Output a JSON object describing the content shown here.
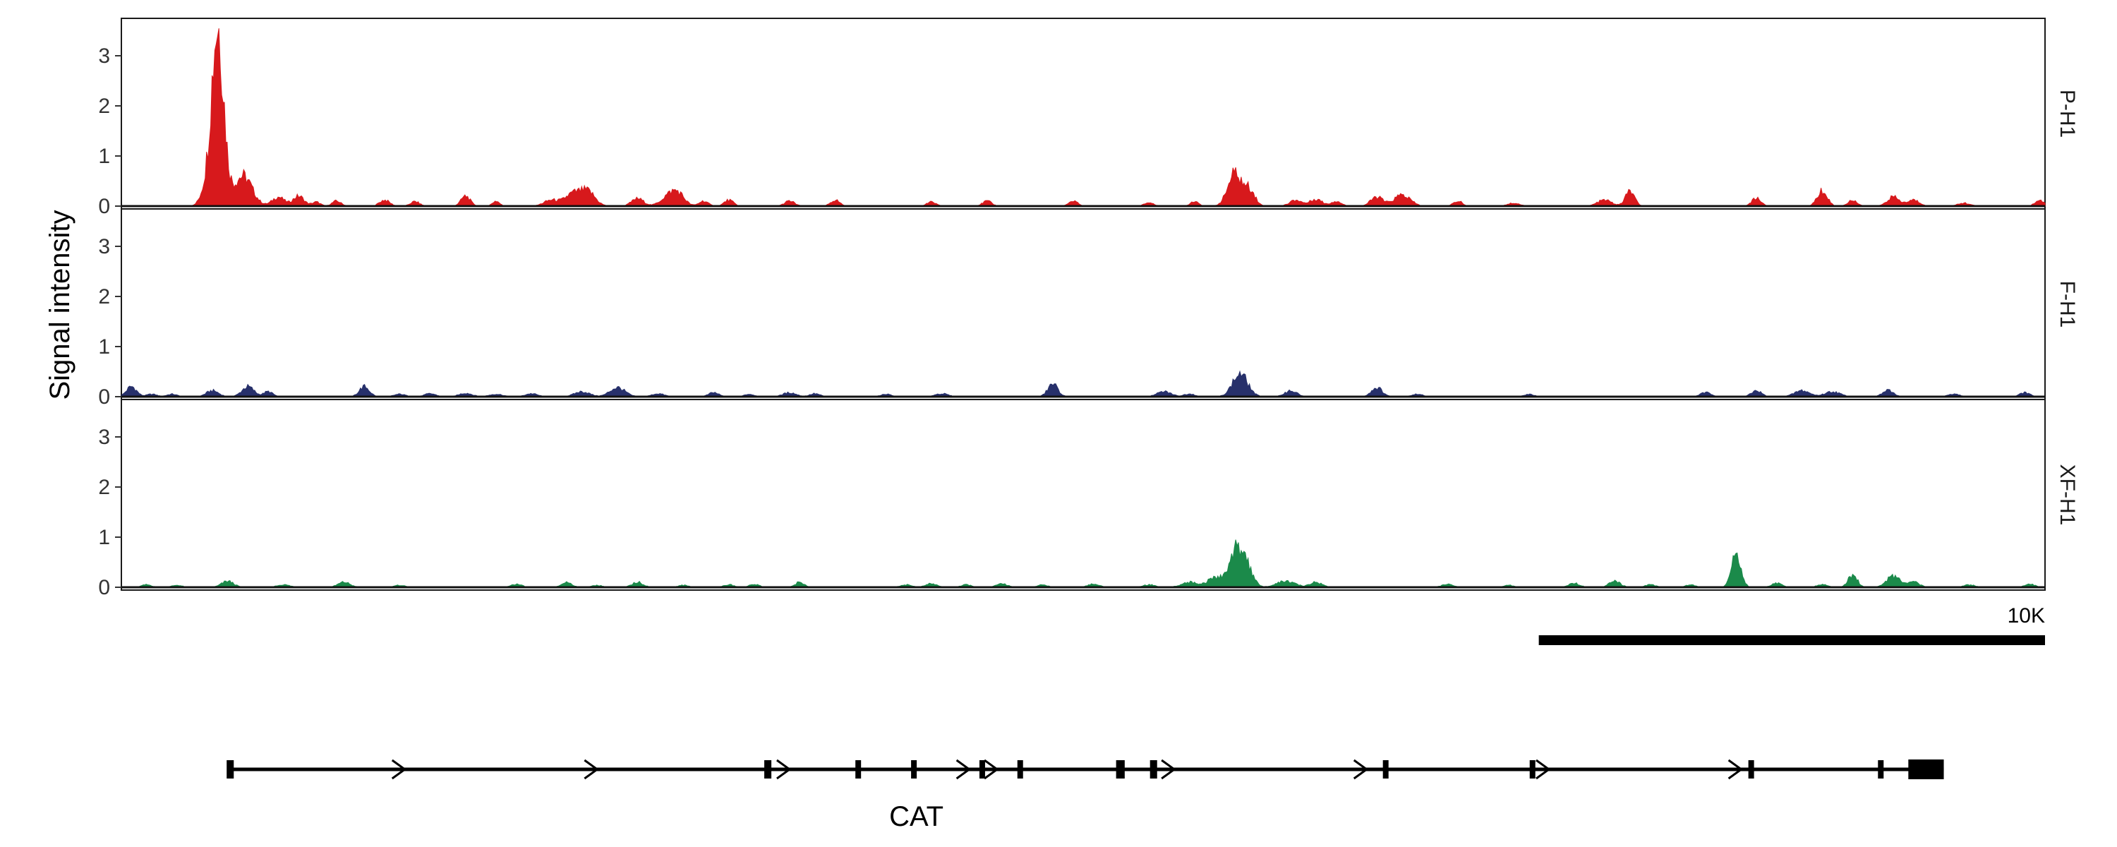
{
  "chart_data": {
    "type": "area",
    "ylabel": "Signal intensity",
    "xlim": [
      0,
      38000
    ],
    "ylim": [
      0,
      3.8
    ],
    "yticks": [
      "0",
      "1",
      "2",
      "3"
    ],
    "grid": false,
    "tracks": [
      {
        "name": "P-H1",
        "color": "#d7191c",
        "peaks": [
          [
            1900,
            3.6,
            120
          ],
          [
            2400,
            0.6,
            180
          ],
          [
            1650,
            0.25,
            100
          ],
          [
            3100,
            0.18,
            120
          ],
          [
            3500,
            0.2,
            110
          ],
          [
            3850,
            0.08,
            80
          ],
          [
            4250,
            0.1,
            90
          ],
          [
            5200,
            0.12,
            100
          ],
          [
            5800,
            0.09,
            90
          ],
          [
            6800,
            0.2,
            90
          ],
          [
            7400,
            0.1,
            70
          ],
          [
            8500,
            0.12,
            150
          ],
          [
            8900,
            0.22,
            140
          ],
          [
            9200,
            0.3,
            150
          ],
          [
            10200,
            0.15,
            120
          ],
          [
            10800,
            0.18,
            150
          ],
          [
            11000,
            0.22,
            130
          ],
          [
            11500,
            0.1,
            90
          ],
          [
            12000,
            0.12,
            90
          ],
          [
            13200,
            0.1,
            100
          ],
          [
            14100,
            0.12,
            90
          ],
          [
            16000,
            0.08,
            90
          ],
          [
            17100,
            0.1,
            90
          ],
          [
            18800,
            0.1,
            90
          ],
          [
            20300,
            0.07,
            90
          ],
          [
            21200,
            0.1,
            80
          ],
          [
            22000,
            0.65,
            140
          ],
          [
            22300,
            0.3,
            100
          ],
          [
            23200,
            0.12,
            120
          ],
          [
            23600,
            0.14,
            120
          ],
          [
            24000,
            0.1,
            100
          ],
          [
            24800,
            0.18,
            120
          ],
          [
            25300,
            0.22,
            160
          ],
          [
            26400,
            0.1,
            90
          ],
          [
            27500,
            0.06,
            120
          ],
          [
            29300,
            0.12,
            140
          ],
          [
            29800,
            0.3,
            90
          ],
          [
            32300,
            0.16,
            90
          ],
          [
            33600,
            0.3,
            100
          ],
          [
            34200,
            0.12,
            90
          ],
          [
            35000,
            0.18,
            120
          ],
          [
            35400,
            0.12,
            120
          ],
          [
            36400,
            0.06,
            120
          ],
          [
            37900,
            0.1,
            100
          ]
        ]
      },
      {
        "name": "F-H1",
        "color": "#27306b",
        "peaks": [
          [
            200,
            0.2,
            100
          ],
          [
            600,
            0.05,
            100
          ],
          [
            1000,
            0.05,
            100
          ],
          [
            1800,
            0.12,
            120
          ],
          [
            2500,
            0.2,
            120
          ],
          [
            2900,
            0.1,
            90
          ],
          [
            4800,
            0.2,
            100
          ],
          [
            5500,
            0.05,
            110
          ],
          [
            6100,
            0.06,
            110
          ],
          [
            6800,
            0.07,
            130
          ],
          [
            7400,
            0.05,
            130
          ],
          [
            8100,
            0.06,
            120
          ],
          [
            9100,
            0.1,
            150
          ],
          [
            9800,
            0.18,
            150
          ],
          [
            10600,
            0.06,
            120
          ],
          [
            11700,
            0.08,
            100
          ],
          [
            12400,
            0.05,
            100
          ],
          [
            13200,
            0.08,
            130
          ],
          [
            13700,
            0.06,
            100
          ],
          [
            15100,
            0.05,
            100
          ],
          [
            16200,
            0.06,
            130
          ],
          [
            18400,
            0.25,
            100
          ],
          [
            20600,
            0.1,
            140
          ],
          [
            21100,
            0.06,
            100
          ],
          [
            22100,
            0.45,
            150
          ],
          [
            23100,
            0.12,
            120
          ],
          [
            24800,
            0.18,
            110
          ],
          [
            25600,
            0.05,
            110
          ],
          [
            27800,
            0.05,
            100
          ],
          [
            31300,
            0.08,
            110
          ],
          [
            32300,
            0.12,
            100
          ],
          [
            33200,
            0.12,
            150
          ],
          [
            33800,
            0.1,
            150
          ],
          [
            34900,
            0.12,
            110
          ],
          [
            36200,
            0.05,
            110
          ],
          [
            37600,
            0.08,
            100
          ]
        ]
      },
      {
        "name": "XF-H1",
        "color": "#1b8a4a",
        "peaks": [
          [
            500,
            0.05,
            100
          ],
          [
            1100,
            0.04,
            100
          ],
          [
            2100,
            0.12,
            120
          ],
          [
            3200,
            0.05,
            130
          ],
          [
            4400,
            0.1,
            120
          ],
          [
            5500,
            0.04,
            100
          ],
          [
            7800,
            0.06,
            110
          ],
          [
            8800,
            0.1,
            100
          ],
          [
            9400,
            0.04,
            100
          ],
          [
            10200,
            0.1,
            110
          ],
          [
            11100,
            0.04,
            100
          ],
          [
            12000,
            0.05,
            100
          ],
          [
            12500,
            0.06,
            100
          ],
          [
            13400,
            0.1,
            90
          ],
          [
            15500,
            0.05,
            110
          ],
          [
            16000,
            0.07,
            110
          ],
          [
            16700,
            0.05,
            100
          ],
          [
            17400,
            0.07,
            110
          ],
          [
            18200,
            0.05,
            100
          ],
          [
            19200,
            0.06,
            120
          ],
          [
            20300,
            0.05,
            110
          ],
          [
            21100,
            0.1,
            160
          ],
          [
            21600,
            0.18,
            150
          ],
          [
            22000,
            0.6,
            140
          ],
          [
            22200,
            0.45,
            130
          ],
          [
            23000,
            0.12,
            180
          ],
          [
            23600,
            0.1,
            120
          ],
          [
            26200,
            0.06,
            110
          ],
          [
            27400,
            0.04,
            100
          ],
          [
            28700,
            0.08,
            110
          ],
          [
            29500,
            0.12,
            110
          ],
          [
            30200,
            0.05,
            110
          ],
          [
            31000,
            0.05,
            100
          ],
          [
            31900,
            0.72,
            90
          ],
          [
            32700,
            0.08,
            100
          ],
          [
            33600,
            0.06,
            100
          ],
          [
            34200,
            0.25,
            90
          ],
          [
            35000,
            0.22,
            130
          ],
          [
            35400,
            0.1,
            120
          ],
          [
            36500,
            0.05,
            110
          ],
          [
            37700,
            0.06,
            100
          ]
        ]
      }
    ],
    "scale_bar": {
      "label": "10K",
      "length": 10000
    },
    "gene": {
      "name": "CAT",
      "start": 2100,
      "end": 36000,
      "exons": [
        [
          2080,
          2220
        ],
        [
          12700,
          12840
        ],
        [
          14500,
          14580
        ],
        [
          15600,
          15680
        ],
        [
          16950,
          17050
        ],
        [
          17700,
          17780
        ],
        [
          19650,
          19820
        ],
        [
          20320,
          20460
        ],
        [
          24920,
          25020
        ],
        [
          27820,
          27920
        ],
        [
          32140,
          32200
        ],
        [
          34700,
          34780
        ],
        [
          35300,
          36000
        ]
      ],
      "arrows": [
        5600,
        9400,
        13200,
        16750,
        17300,
        20800,
        24600,
        28200,
        32000
      ]
    }
  }
}
